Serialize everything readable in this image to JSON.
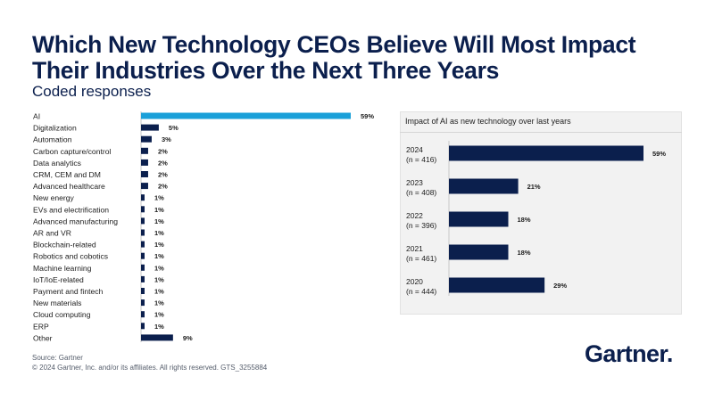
{
  "header": {
    "title": "Which New Technology CEOs Believe Will Most Impact Their Industries Over the Next Three Years",
    "subtitle": "Coded responses"
  },
  "colors": {
    "highlight": "#1aa0d9",
    "bar": "#0b1f4d",
    "text": "#1c1c1c"
  },
  "chart_data": [
    {
      "type": "bar",
      "orientation": "horizontal",
      "title": "Which New Technology CEOs Believe Will Most Impact Their Industries Over the Next Three Years",
      "subtitle": "Coded responses",
      "categories": [
        "AI",
        "Digitalization",
        "Automation",
        "Carbon capture/control",
        "Data analytics",
        "CRM, CEM and DM",
        "Advanced healthcare",
        "New energy",
        "EVs and electrification",
        "Advanced manufacturing",
        "AR and VR",
        "Blockchain-related",
        "Robotics and cobotics",
        "Machine learning",
        "IoT/IoE-related",
        "Payment and fintech",
        "New materials",
        "Cloud computing",
        "ERP",
        "Other"
      ],
      "values": [
        59,
        5,
        3,
        2,
        2,
        2,
        2,
        1,
        1,
        1,
        1,
        1,
        1,
        1,
        1,
        1,
        1,
        1,
        1,
        9
      ],
      "value_labels": [
        "59%",
        "5%",
        "3%",
        "2%",
        "2%",
        "2%",
        "2%",
        "1%",
        "1%",
        "1%",
        "1%",
        "1%",
        "1%",
        "1%",
        "1%",
        "1%",
        "1%",
        "1%",
        "1%",
        "9%"
      ],
      "unit": "%",
      "highlight": "AI",
      "xlim": [
        0,
        59
      ]
    },
    {
      "type": "bar",
      "orientation": "horizontal",
      "title": "Impact of AI as new technology over last years",
      "categories": [
        "2024",
        "2023",
        "2022",
        "2021",
        "2020"
      ],
      "sample_sizes": [
        "(n = 416)",
        "(n = 408)",
        "(n = 396)",
        "(n = 461)",
        "(n = 444)"
      ],
      "values": [
        59,
        21,
        18,
        18,
        29
      ],
      "value_labels": [
        "59%",
        "21%",
        "18%",
        "18%",
        "29%"
      ],
      "unit": "%",
      "xlim": [
        0,
        59
      ]
    }
  ],
  "footer": {
    "source": "Source: Gartner",
    "copyright": "© 2024 Gartner, Inc. and/or its affiliates. All rights reserved. GTS_3255884",
    "logo_text": "Gartner."
  }
}
